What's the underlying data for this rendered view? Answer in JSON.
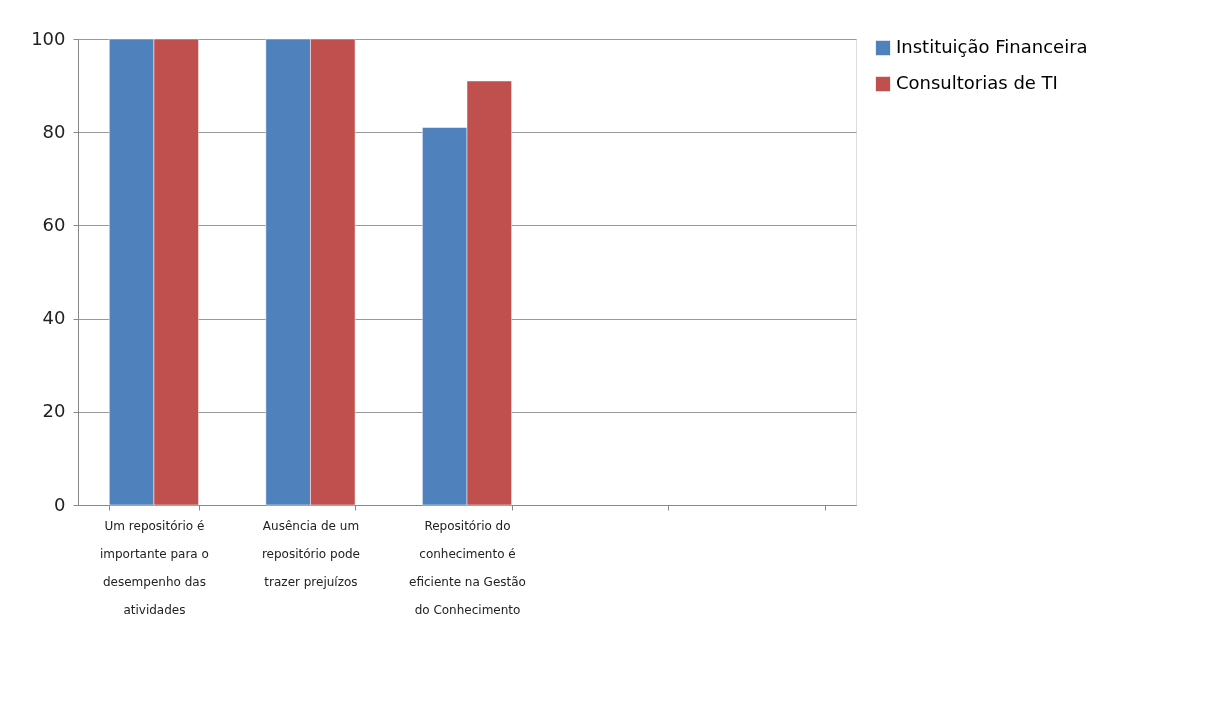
{
  "chart_data": {
    "type": "bar",
    "categories": [
      "Um repositório é importante para o desempenho das atividades",
      "Ausência de um repositório pode trazer prejuízos",
      "Repositório do conhecimento é eficiente na Gestão do Conhecimento",
      null,
      null
    ],
    "series": [
      {
        "name": "Instituição Financeira",
        "color": "#4f81bd",
        "values": [
          100,
          100,
          81,
          null,
          null
        ]
      },
      {
        "name": "Consultorias de TI",
        "color": "#c0504d",
        "values": [
          100,
          100,
          91,
          null,
          null
        ]
      }
    ],
    "ylim": [
      0,
      100
    ],
    "yticks": [
      0,
      20,
      40,
      60,
      80,
      100
    ],
    "grid": "y",
    "legend": "right"
  }
}
